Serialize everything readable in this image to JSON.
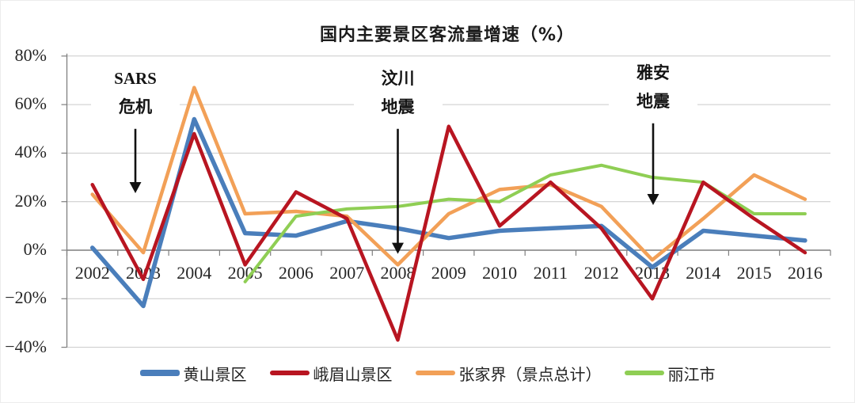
{
  "title": "国内主要景区客流量增速（%）",
  "chart_data": {
    "type": "line",
    "x": [
      2002,
      2003,
      2004,
      2005,
      2006,
      2007,
      2008,
      2009,
      2010,
      2011,
      2012,
      2013,
      2014,
      2015,
      2016
    ],
    "series": [
      {
        "id": "huangshan",
        "name": "黄山景区",
        "color": "#4a7ebb",
        "width": 5.5,
        "values": [
          1,
          -23,
          54,
          7,
          6,
          12,
          9,
          5,
          8,
          9,
          10,
          -7,
          8,
          6,
          4
        ]
      },
      {
        "id": "emeishan",
        "name": "峨眉山景区",
        "color": "#b81521",
        "width": 4.5,
        "values": [
          27,
          -12,
          48,
          -6,
          24,
          13,
          -37,
          51,
          10,
          28,
          9,
          -20,
          28,
          13,
          -1
        ]
      },
      {
        "id": "zhangjiajie",
        "name": "张家界（景点总计）",
        "color": "#f2a057",
        "width": 4.5,
        "values": [
          23,
          -1,
          67,
          15,
          16,
          14,
          -6,
          15,
          25,
          27,
          18,
          -4,
          13,
          31,
          21
        ]
      },
      {
        "id": "lijiang",
        "name": "丽江市",
        "color": "#8fce54",
        "width": 4,
        "values": [
          null,
          null,
          null,
          -13,
          14,
          17,
          18,
          21,
          20,
          31,
          35,
          30,
          28,
          15,
          15
        ]
      }
    ],
    "y_ticks": [
      "80%",
      "60%",
      "40%",
      "20%",
      "0%",
      "−20%",
      "−40%"
    ],
    "y_tick_values": [
      80,
      60,
      40,
      20,
      0,
      -20,
      -40
    ],
    "ylim": [
      -40,
      80
    ],
    "grid": true,
    "legend_position": "bottom",
    "annotations": [
      {
        "lines": [
          "SARS",
          "危机"
        ],
        "year": 2003,
        "arrow_from": 50,
        "arrow_to": 23.5,
        "dx": -10
      },
      {
        "lines": [
          "汶川",
          "地震"
        ],
        "year": 2008,
        "arrow_from": 50,
        "arrow_to": -1.5,
        "dx": 0
      },
      {
        "lines": [
          "雅安",
          "地震"
        ],
        "year": 2013,
        "arrow_from": 52.3,
        "arrow_to": 18.6,
        "dx": 1
      }
    ],
    "colors": {
      "gridline": "#c9c9c9",
      "axis": "#7f7f7f",
      "text": "#262626",
      "arrow": "#111111"
    }
  }
}
